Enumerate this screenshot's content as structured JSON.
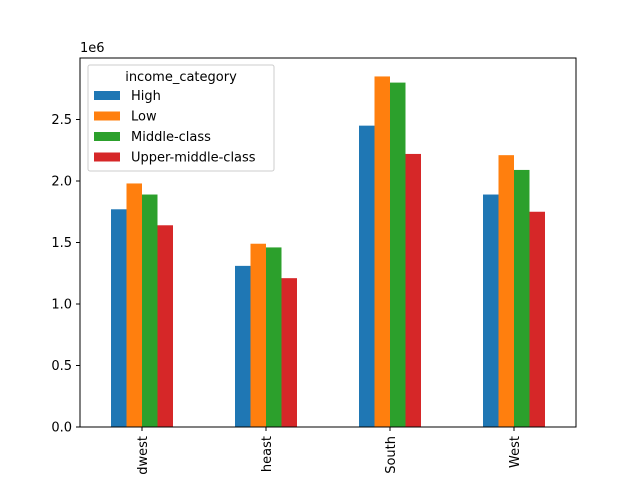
{
  "chart_data": {
    "type": "bar",
    "title": "",
    "xlabel": "",
    "ylabel": "",
    "y_offset_label": "1e6",
    "categories": [
      "Midwest",
      "Northeast",
      "South",
      "West"
    ],
    "category_tick_text": [
      "dwest",
      "heast",
      "South",
      "West"
    ],
    "ylim": [
      0,
      3000000
    ],
    "yticks": [
      0,
      500000,
      1000000,
      1500000,
      2000000,
      2500000
    ],
    "ytick_labels": [
      "0.0",
      "0.5",
      "1.0",
      "1.5",
      "2.0",
      "2.5"
    ],
    "grid": false,
    "legend": {
      "title": "income_category",
      "placement": "upper-left"
    },
    "series": [
      {
        "name": "High",
        "color": "#1f77b4",
        "values": [
          1770000,
          1310000,
          2450000,
          1890000
        ]
      },
      {
        "name": "Low",
        "color": "#ff7f0e",
        "values": [
          1980000,
          1490000,
          2850000,
          2210000
        ]
      },
      {
        "name": "Middle-class",
        "color": "#2ca02c",
        "values": [
          1890000,
          1460000,
          2800000,
          2090000
        ]
      },
      {
        "name": "Upper-middle-class",
        "color": "#d62728",
        "values": [
          1640000,
          1210000,
          2220000,
          1750000
        ]
      }
    ]
  }
}
